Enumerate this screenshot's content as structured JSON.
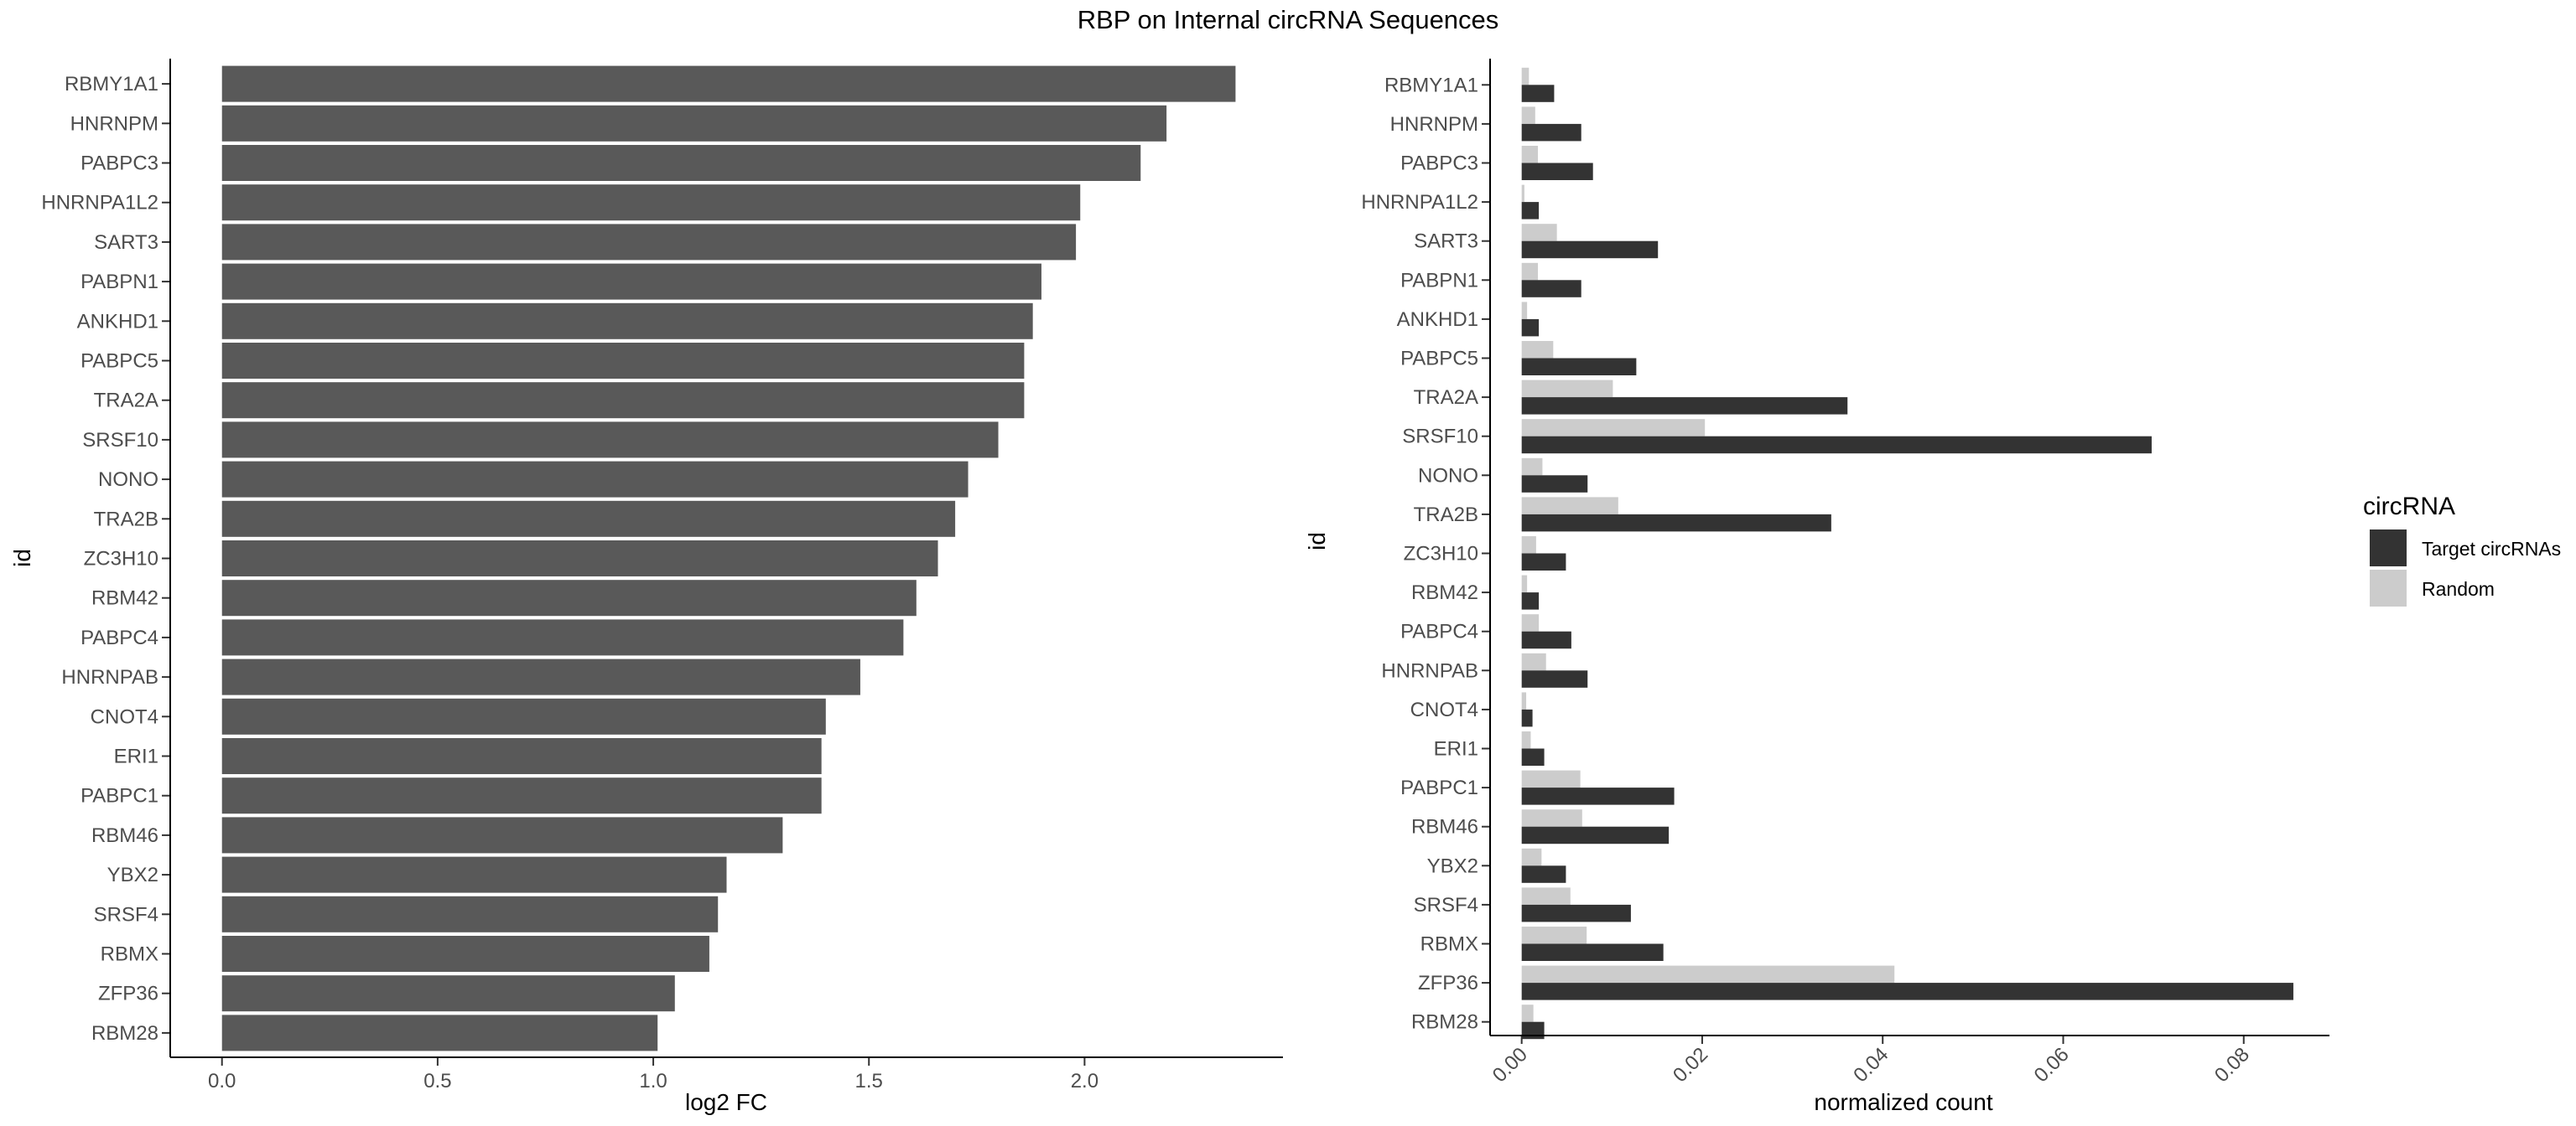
{
  "title": "RBP on Internal circRNA Sequences",
  "colors": {
    "bar_left": "#595959",
    "target": "#333333",
    "random": "#cccccc",
    "axis": "#000000",
    "tick_text": "#4d4d4d"
  },
  "chart_data": [
    {
      "type": "bar",
      "orientation": "horizontal",
      "xlabel": "log2 FC",
      "ylabel": "id",
      "xlim": [
        -0.12,
        2.46
      ],
      "xticks": [
        0.0,
        0.5,
        1.0,
        1.5,
        2.0
      ],
      "xtick_labels": [
        "0.0",
        "0.5",
        "1.0",
        "1.5",
        "2.0"
      ],
      "grid": false,
      "categories": [
        "RBMY1A1",
        "HNRNPM",
        "PABPC3",
        "HNRNPA1L2",
        "SART3",
        "PABPN1",
        "ANKHD1",
        "PABPC5",
        "TRA2A",
        "SRSF10",
        "NONO",
        "TRA2B",
        "ZC3H10",
        "RBM42",
        "PABPC4",
        "HNRNPAB",
        "CNOT4",
        "ERI1",
        "PABPC1",
        "RBM46",
        "YBX2",
        "SRSF4",
        "RBMX",
        "ZFP36",
        "RBM28"
      ],
      "values": [
        2.35,
        2.19,
        2.13,
        1.99,
        1.98,
        1.9,
        1.88,
        1.86,
        1.86,
        1.8,
        1.73,
        1.7,
        1.66,
        1.61,
        1.58,
        1.48,
        1.4,
        1.39,
        1.39,
        1.3,
        1.17,
        1.15,
        1.13,
        1.05,
        1.01
      ]
    },
    {
      "type": "bar",
      "orientation": "horizontal",
      "xlabel": "normalized count",
      "ylabel": "id",
      "xlim": [
        -0.0035,
        0.0895
      ],
      "xticks": [
        0.0,
        0.02,
        0.04,
        0.06,
        0.08
      ],
      "xtick_labels": [
        "0.00",
        "0.02",
        "0.04",
        "0.06",
        "0.08"
      ],
      "grid": false,
      "legend": {
        "title": "circRNA",
        "position": "right"
      },
      "categories": [
        "RBMY1A1",
        "HNRNPM",
        "PABPC3",
        "HNRNPA1L2",
        "SART3",
        "PABPN1",
        "ANKHD1",
        "PABPC5",
        "TRA2A",
        "SRSF10",
        "NONO",
        "TRA2B",
        "ZC3H10",
        "RBM42",
        "PABPC4",
        "HNRNPAB",
        "CNOT4",
        "ERI1",
        "PABPC1",
        "RBM46",
        "YBX2",
        "SRSF4",
        "RBMX",
        "ZFP36",
        "RBM28"
      ],
      "series": [
        {
          "name": "Target circRNAs",
          "values": [
            0.0036,
            0.0066,
            0.0079,
            0.0019,
            0.0151,
            0.0066,
            0.0019,
            0.0127,
            0.0361,
            0.0698,
            0.0073,
            0.0343,
            0.0049,
            0.0019,
            0.0055,
            0.0073,
            0.0012,
            0.0025,
            0.0169,
            0.0163,
            0.0049,
            0.0121,
            0.0157,
            0.0855,
            0.0025
          ]
        },
        {
          "name": "Random",
          "values": [
            0.0008,
            0.0015,
            0.0018,
            0.0003,
            0.0039,
            0.0018,
            0.0006,
            0.0035,
            0.0101,
            0.0203,
            0.0023,
            0.0107,
            0.0016,
            0.0006,
            0.0019,
            0.0027,
            0.0005,
            0.001,
            0.0065,
            0.0067,
            0.0022,
            0.0054,
            0.0072,
            0.0413,
            0.0013
          ]
        }
      ]
    }
  ]
}
